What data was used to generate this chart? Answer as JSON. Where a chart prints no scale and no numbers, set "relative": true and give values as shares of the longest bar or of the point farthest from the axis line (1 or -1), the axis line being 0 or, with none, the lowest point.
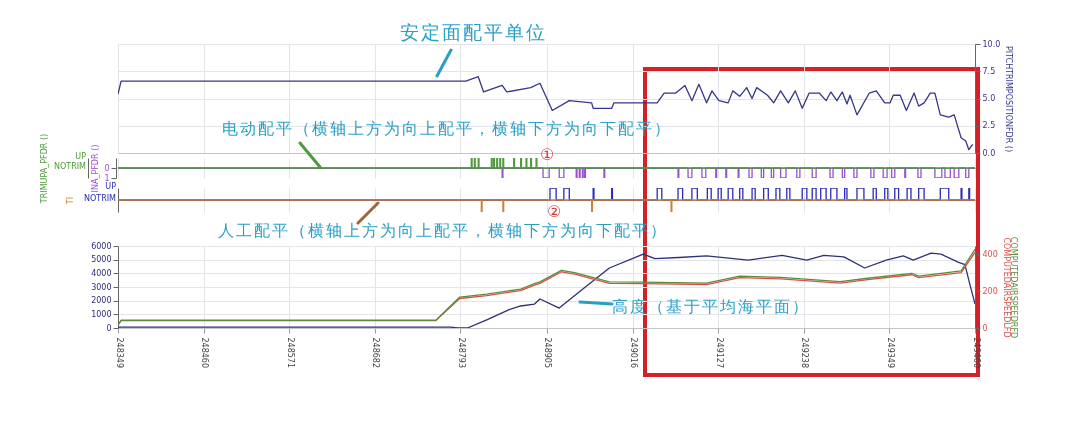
{
  "chart_data": [
    {
      "type": "line",
      "annotations": [
        "安定面配平单位"
      ],
      "xlim": [
        248349,
        249460
      ],
      "xticks": [
        248349,
        248460,
        248571,
        248682,
        248793,
        248905,
        249016,
        249127,
        249238,
        249349,
        249460
      ],
      "ylim": [
        0,
        10
      ],
      "yticks": [
        {
          "value": 0,
          "label": "0.0"
        },
        {
          "value": 2.5,
          "label": "2.5"
        },
        {
          "value": 5,
          "label": "5.0"
        },
        {
          "value": 7.5,
          "label": "7.5"
        },
        {
          "value": 10,
          "label": "10.0"
        }
      ],
      "grid": true,
      "tick_labels": "y",
      "x": [
        248349,
        248353,
        248782,
        248800,
        248816,
        248823,
        248847,
        248853,
        248884,
        248896,
        248912,
        248934,
        248963,
        248965,
        248989,
        248992,
        249048,
        249057,
        249072,
        249084,
        249093,
        249102,
        249112,
        249119,
        249128,
        249140,
        249146,
        249155,
        249164,
        249171,
        249177,
        249191,
        249199,
        249208,
        249218,
        249227,
        249236,
        249245,
        249258,
        249267,
        249273,
        249281,
        249288,
        249294,
        249298,
        249307,
        249323,
        249332,
        249343,
        249350,
        249354,
        249363,
        249371,
        249381,
        249387,
        249394,
        249402,
        249408,
        249415,
        249426,
        249433,
        249442,
        249448,
        249452,
        249457
      ],
      "series": [
        {
          "name": "PITCHTRIMPOSITIONFDR ()",
          "color": "#36368a",
          "values": [
            5.4,
            6.6,
            6.6,
            6.6,
            7.0,
            5.6,
            6.2,
            5.6,
            6.0,
            6.4,
            3.9,
            4.8,
            4.6,
            4.1,
            4.1,
            4.6,
            4.6,
            5.5,
            5.5,
            6.2,
            4.8,
            6.3,
            4.6,
            5.7,
            4.8,
            4.6,
            5.7,
            5.2,
            6.0,
            5.0,
            6.0,
            5.3,
            4.6,
            5.7,
            4.6,
            5.7,
            4.1,
            5.5,
            5.5,
            4.8,
            5.6,
            4.8,
            5.6,
            4.5,
            5.3,
            3.5,
            5.5,
            5.7,
            4.6,
            4.6,
            5.3,
            5.3,
            3.9,
            5.5,
            4.3,
            4.6,
            5.5,
            5.5,
            3.5,
            3.3,
            3.5,
            1.4,
            1.1,
            0.3,
            0.8
          ]
        }
      ]
    },
    {
      "type": "step",
      "annotations": [
        "电动配平（横轴上方为向上配平，横轴下方为向下配平）",
        "①",
        "UP",
        "NOTRIM"
      ],
      "xlim": [
        248349,
        249460
      ],
      "xticks": [
        248349,
        248460,
        248571,
        248682,
        248793,
        248905,
        249016,
        249127,
        249238,
        249349,
        249460
      ],
      "relative": true,
      "y2lim": [
        1,
        -1
      ],
      "y2ticks": [
        0,
        1
      ],
      "grid": "x",
      "tick_labels": "y",
      "series": [
        {
          "name": "TRIMUPA_PFDR ()",
          "color": "#4e9a3c",
          "x": [
            248349,
            248807,
            248808,
            248811,
            248812,
            248816,
            248817,
            248833,
            248834,
            248836,
            248837,
            248840,
            248841,
            248844,
            248845,
            248848,
            248849,
            248862,
            248863,
            248871,
            248872,
            248878,
            248879,
            248884,
            248885,
            248891,
            248892,
            249460
          ],
          "values": [
            0,
            1,
            0,
            1,
            0,
            1,
            0,
            1,
            0,
            1,
            0,
            1,
            0,
            1,
            0,
            1,
            0,
            1,
            0,
            1,
            0,
            1,
            0,
            1,
            0,
            1,
            0,
            0
          ]
        },
        {
          "name": "INA_PFDR ()",
          "color": "#9b4fd0",
          "axis": "y2",
          "x": [
            248349,
            248847,
            248848,
            248900,
            248908,
            248921,
            248927,
            248943,
            248944,
            248947,
            248948,
            248951,
            248952,
            248954,
            248955,
            248979,
            248980,
            249075,
            249076,
            249088,
            249093,
            249106,
            249111,
            249124,
            249125,
            249137,
            249138,
            249153,
            249154,
            249167,
            249171,
            249183,
            249186,
            249196,
            249199,
            249208,
            249215,
            249229,
            249233,
            249249,
            249254,
            249272,
            249276,
            249288,
            249291,
            249303,
            249307,
            249325,
            249329,
            249341,
            249346,
            249352,
            249356,
            249369,
            249370,
            249386,
            249390,
            249408,
            249417,
            249421,
            249428,
            249433,
            249439,
            249448,
            249452,
            249460
          ],
          "values": [
            0,
            1,
            0,
            1,
            0,
            1,
            0,
            1,
            0,
            1,
            0,
            1,
            0,
            1,
            0,
            1,
            0,
            1,
            0,
            1,
            0,
            1,
            0,
            1,
            0,
            1,
            0,
            1,
            0,
            1,
            0,
            1,
            0,
            1,
            0,
            1,
            0,
            1,
            0,
            1,
            0,
            1,
            0,
            1,
            0,
            1,
            0,
            1,
            0,
            1,
            0,
            1,
            0,
            1,
            0,
            1,
            0,
            1,
            0,
            1,
            0,
            1,
            0,
            1,
            0,
            0
          ]
        }
      ]
    },
    {
      "type": "step",
      "annotations": [
        "人工配平（横轴上方为向上配平，横轴下方为向下配平）",
        "②",
        "UP",
        "NOTRIM"
      ],
      "xlim": [
        248349,
        249460
      ],
      "xticks": [
        248349,
        248460,
        248571,
        248682,
        248793,
        248905,
        249016,
        249127,
        249238,
        249349,
        249460
      ],
      "relative": true,
      "grid": "x",
      "tick_labels": "y",
      "series": [
        {
          "color": "#2b2bb5",
          "x": [
            248349,
            248909,
            248917,
            248927,
            248934,
            248965,
            248966,
            248989,
            248990,
            249048,
            249054,
            249075,
            249081,
            249093,
            249100,
            249113,
            249118,
            249127,
            249131,
            249140,
            249146,
            249155,
            249159,
            249171,
            249175,
            249186,
            249192,
            249202,
            249207,
            249216,
            249220,
            249236,
            249242,
            249249,
            249254,
            249260,
            249267,
            249273,
            249281,
            249291,
            249294,
            249307,
            249316,
            249328,
            249332,
            249343,
            249347,
            249356,
            249361,
            249372,
            249377,
            249387,
            249394,
            249415,
            249426,
            249442,
            249443,
            249452,
            249453,
            249460
          ],
          "values": [
            0,
            1,
            0,
            1,
            0,
            1,
            0,
            1,
            0,
            1,
            0,
            1,
            0,
            1,
            0,
            1,
            0,
            1,
            0,
            1,
            0,
            1,
            0,
            1,
            0,
            1,
            0,
            1,
            0,
            1,
            0,
            1,
            0,
            1,
            0,
            1,
            0,
            1,
            0,
            1,
            0,
            1,
            0,
            1,
            0,
            1,
            0,
            1,
            0,
            1,
            0,
            1,
            0,
            1,
            0,
            1,
            0,
            1,
            0,
            0
          ]
        },
        {
          "name": "TI",
          "color": "#c8823c",
          "x": [
            248349,
            248820,
            248821,
            248848,
            248849,
            248963,
            248964,
            249066,
            249067,
            249460
          ],
          "values": [
            0,
            -1,
            0,
            -1,
            0,
            -1,
            0,
            -1,
            0,
            0
          ]
        }
      ]
    },
    {
      "type": "line",
      "annotations": [
        "高度（基于平均海平面）"
      ],
      "xlim": [
        248349,
        249460
      ],
      "xticks": [
        248349,
        248460,
        248571,
        248682,
        248793,
        248905,
        249016,
        249127,
        249238,
        249349,
        249460
      ],
      "ylim": [
        0,
        6000
      ],
      "yticks": [
        0,
        1000,
        2000,
        3000,
        4000,
        5000,
        6000
      ],
      "y2lim": [
        0,
        445
      ],
      "y2ticks": [
        0,
        200,
        400
      ],
      "grid": true,
      "series": [
        {
          "color": "#2e2e7a",
          "x": [
            248349,
            248780,
            248790,
            248802,
            248827,
            248858,
            248871,
            248889,
            248896,
            248921,
            248950,
            248986,
            249030,
            249045,
            249076,
            249112,
            249166,
            249210,
            249242,
            249264,
            249290,
            249317,
            249345,
            249367,
            249380,
            249403,
            249416,
            249438,
            249447,
            249453,
            249460
          ],
          "values": [
            70,
            70,
            0,
            0,
            600,
            1390,
            1610,
            1750,
            2120,
            1460,
            2780,
            4390,
            5410,
            5080,
            5160,
            5280,
            4970,
            5320,
            4970,
            5320,
            5200,
            4390,
            4970,
            5280,
            4970,
            5480,
            5400,
            4820,
            4640,
            3260,
            1760
          ]
        },
        {
          "name": "COMPUTEDAIRSPEEDLFD",
          "color": "#d9504a",
          "axis": "y2",
          "x": [
            248349,
            248353,
            248761,
            248792,
            248827,
            248871,
            248889,
            248896,
            248924,
            248941,
            248986,
            249030,
            249112,
            249155,
            249208,
            249285,
            249321,
            249378,
            249387,
            249442,
            249460
          ],
          "values": [
            16,
            40,
            40,
            160,
            176,
            203,
            233,
            242,
            305,
            292,
            242,
            241,
            236,
            273,
            267,
            244,
            262,
            289,
            273,
            300,
            410
          ]
        },
        {
          "name": "COMPUTEDAIRSPEEDRFD",
          "color": "#5b8c3a",
          "axis": "y2",
          "x": [
            248349,
            248353,
            248761,
            248792,
            248827,
            248871,
            248889,
            248896,
            248924,
            248941,
            248986,
            249030,
            249112,
            249155,
            249208,
            249285,
            249321,
            249378,
            249387,
            249442,
            249460
          ],
          "values": [
            16,
            42,
            42,
            168,
            184,
            211,
            241,
            250,
            313,
            300,
            250,
            249,
            244,
            281,
            275,
            252,
            270,
            297,
            281,
            310,
            427
          ]
        }
      ]
    }
  ]
}
